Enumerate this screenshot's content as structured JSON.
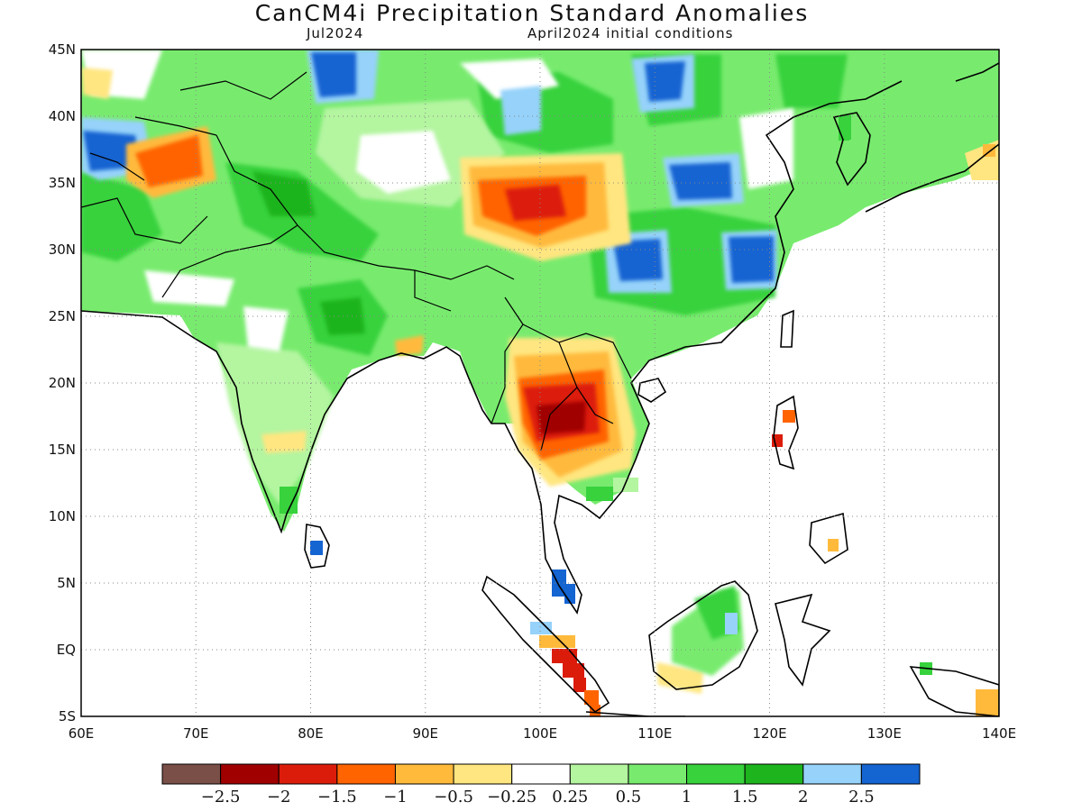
{
  "title": "CanCM4i Precipitation Standard Anomalies",
  "subtitle_left": "Jul2024",
  "subtitle_right": "April2024 initial conditions",
  "map": {
    "lon_labels": [
      "60E",
      "70E",
      "80E",
      "90E",
      "100E",
      "110E",
      "120E",
      "130E",
      "140E"
    ],
    "lat_labels": [
      "45N",
      "40N",
      "35N",
      "30N",
      "25N",
      "20N",
      "15N",
      "10N",
      "5N",
      "EQ",
      "5S"
    ],
    "land_color": "#ffffff",
    "ocean_color": "#ffffff",
    "border_color": "#000000"
  },
  "colorbar": {
    "colors": [
      "#7a4f47",
      "#a00000",
      "#dc1c0b",
      "#ff6400",
      "#ffba3c",
      "#ffe680",
      "#ffffff",
      "#b4f5a0",
      "#78eb6e",
      "#37d23c",
      "#1eb41e",
      "#96d2fa",
      "#1464d2"
    ],
    "labels": [
      "-2.5",
      "-2",
      "-1.5",
      "-1",
      "-0.5",
      "-0.25",
      "0.25",
      "0.5",
      "1",
      "1.5",
      "2",
      "2.5"
    ]
  }
}
